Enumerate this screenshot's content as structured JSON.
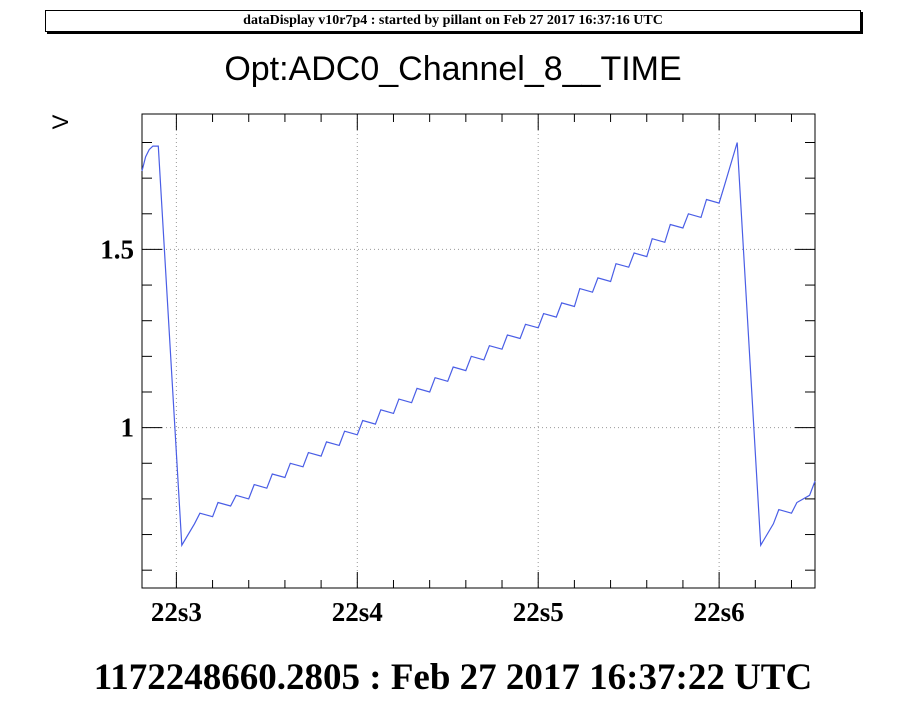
{
  "header": {
    "banner": "dataDisplay v10r7p4 : started by pillant on Feb 27 2017 16:37:16 UTC"
  },
  "footer": {
    "timestamp": "1172248660.2805 : Feb 27 2017 16:37:22 UTC"
  },
  "colors": {
    "series": "#4a5ee6",
    "grid": "#999999",
    "axis": "#000000"
  },
  "chart_data": {
    "type": "line",
    "title": "Opt:ADC0_Channel_8__TIME",
    "xlabel": "",
    "ylabel": "V",
    "xlim": [
      2.81,
      6.53
    ],
    "ylim": [
      0.55,
      1.88
    ],
    "grid": true,
    "x_ticks": [
      {
        "value": 3,
        "label": "22s3"
      },
      {
        "value": 4,
        "label": "22s4"
      },
      {
        "value": 5,
        "label": "22s5"
      },
      {
        "value": 6,
        "label": "22s6"
      }
    ],
    "y_ticks": [
      {
        "value": 1,
        "label": "1"
      },
      {
        "value": 1.5,
        "label": "1.5"
      }
    ],
    "series": [
      {
        "name": "",
        "x": [
          2.81,
          2.83,
          2.85,
          2.87,
          2.9,
          3.03,
          3.1,
          3.13,
          3.2,
          3.23,
          3.3,
          3.33,
          3.4,
          3.43,
          3.5,
          3.53,
          3.6,
          3.63,
          3.7,
          3.73,
          3.8,
          3.83,
          3.9,
          3.93,
          4.0,
          4.03,
          4.1,
          4.13,
          4.2,
          4.23,
          4.3,
          4.33,
          4.4,
          4.43,
          4.5,
          4.53,
          4.6,
          4.63,
          4.7,
          4.73,
          4.8,
          4.83,
          4.9,
          4.93,
          5.0,
          5.03,
          5.1,
          5.13,
          5.2,
          5.23,
          5.3,
          5.33,
          5.4,
          5.43,
          5.5,
          5.53,
          5.6,
          5.63,
          5.7,
          5.73,
          5.8,
          5.83,
          5.9,
          5.93,
          6.0,
          6.03,
          6.1,
          6.23,
          6.3,
          6.33,
          6.4,
          6.43,
          6.5,
          6.53
        ],
        "y": [
          1.72,
          1.76,
          1.78,
          1.79,
          1.79,
          0.67,
          0.73,
          0.76,
          0.75,
          0.79,
          0.78,
          0.81,
          0.8,
          0.84,
          0.83,
          0.87,
          0.86,
          0.9,
          0.89,
          0.93,
          0.92,
          0.96,
          0.95,
          0.99,
          0.98,
          1.02,
          1.01,
          1.05,
          1.04,
          1.08,
          1.07,
          1.11,
          1.1,
          1.14,
          1.13,
          1.17,
          1.16,
          1.2,
          1.19,
          1.23,
          1.22,
          1.26,
          1.25,
          1.29,
          1.28,
          1.32,
          1.31,
          1.35,
          1.34,
          1.39,
          1.38,
          1.42,
          1.41,
          1.46,
          1.45,
          1.49,
          1.48,
          1.53,
          1.52,
          1.57,
          1.56,
          1.6,
          1.59,
          1.64,
          1.63,
          1.68,
          1.8,
          0.67,
          0.73,
          0.77,
          0.76,
          0.79,
          0.81,
          0.85
        ]
      }
    ]
  }
}
